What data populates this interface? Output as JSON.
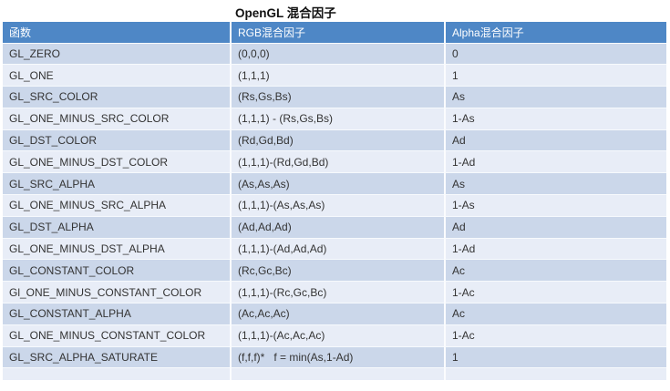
{
  "title": "OpenGL 混合因子",
  "table": {
    "columns": [
      "函数",
      "RGB混合因子",
      "Alpha混合因子"
    ],
    "rows": [
      {
        "fn": "GL_ZERO",
        "rgb": "(0,0,0)",
        "alpha": "0"
      },
      {
        "fn": "GL_ONE",
        "rgb": "(1,1,1)",
        "alpha": "1"
      },
      {
        "fn": "GL_SRC_COLOR",
        "rgb": "(Rs,Gs,Bs)",
        "alpha": "As"
      },
      {
        "fn": "GL_ONE_MINUS_SRC_COLOR",
        "rgb": "(1,1,1) - (Rs,Gs,Bs)",
        "alpha": "1-As"
      },
      {
        "fn": "GL_DST_COLOR",
        "rgb": "(Rd,Gd,Bd)",
        "alpha": "Ad"
      },
      {
        "fn": "GL_ONE_MINUS_DST_COLOR",
        "rgb": "(1,1,1)-(Rd,Gd,Bd)",
        "alpha": "1-Ad"
      },
      {
        "fn": "GL_SRC_ALPHA",
        "rgb": "(As,As,As)",
        "alpha": "As"
      },
      {
        "fn": "GL_ONE_MINUS_SRC_ALPHA",
        "rgb": "(1,1,1)-(As,As,As)",
        "alpha": "1-As"
      },
      {
        "fn": "GL_DST_ALPHA",
        "rgb": "(Ad,Ad,Ad)",
        "alpha": "Ad"
      },
      {
        "fn": "GL_ONE_MINUS_DST_ALPHA",
        "rgb": "(1,1,1)-(Ad,Ad,Ad)",
        "alpha": "1-Ad"
      },
      {
        "fn": "GL_CONSTANT_COLOR",
        "rgb": "(Rc,Gc,Bc)",
        "alpha": "Ac"
      },
      {
        "fn": "Gl_ONE_MINUS_CONSTANT_COLOR",
        "rgb": "(1,1,1)-(Rc,Gc,Bc)",
        "alpha": "1-Ac"
      },
      {
        "fn": "GL_CONSTANT_ALPHA",
        "rgb": "(Ac,Ac,Ac)",
        "alpha": "Ac"
      },
      {
        "fn": "GL_ONE_MINUS_CONSTANT_COLOR",
        "rgb": "(1,1,1)-(Ac,Ac,Ac)",
        "alpha": "1-Ac"
      },
      {
        "fn": "GL_SRC_ALPHA_SATURATE",
        "rgb": "(f,f,f)*   f = min(As,1-Ad)",
        "alpha": "1"
      }
    ]
  },
  "colors": {
    "page_bg": "#ffffff",
    "header_bg": "#4e87c6",
    "header_text": "#ffffff",
    "row_dark": "#cbd7ea",
    "row_light": "#e8edf7",
    "separator": "#f7fafd",
    "separator_vertical": "#fbfcfe",
    "body_text": "#333333"
  }
}
